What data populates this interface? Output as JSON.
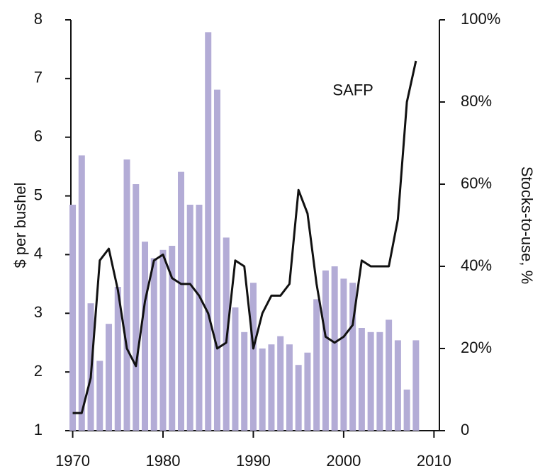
{
  "chart_data": {
    "type": "bar-line",
    "x_label": null,
    "y_label": "$ per bushel",
    "y2_label": "Stocks-to-use, %",
    "x": [
      1970,
      1971,
      1972,
      1973,
      1974,
      1975,
      1976,
      1977,
      1978,
      1979,
      1980,
      1981,
      1982,
      1983,
      1984,
      1985,
      1986,
      1987,
      1988,
      1989,
      1990,
      1991,
      1992,
      1993,
      1994,
      1995,
      1996,
      1997,
      1998,
      1999,
      2000,
      2001,
      2002,
      2003,
      2004,
      2005,
      2006,
      2007,
      2008
    ],
    "series": [
      {
        "type": "bar",
        "axis": "y2",
        "color": "#b3acd6",
        "values": [
          55,
          67,
          31,
          17,
          26,
          35,
          66,
          60,
          46,
          42,
          44,
          45,
          63,
          55,
          55,
          97,
          83,
          47,
          30,
          24,
          36,
          20,
          21,
          23,
          21,
          16,
          19,
          32,
          39,
          40,
          37,
          36,
          25,
          24,
          24,
          27,
          22,
          10,
          22
        ]
      },
      {
        "type": "line",
        "name": "SAFP",
        "color": "#111111",
        "values": [
          1.3,
          1.3,
          1.9,
          3.9,
          4.1,
          3.4,
          2.4,
          2.1,
          3.2,
          3.9,
          4.0,
          3.6,
          3.5,
          3.5,
          3.3,
          3.0,
          2.4,
          2.5,
          3.9,
          3.8,
          2.4,
          3.0,
          3.3,
          3.3,
          3.5,
          5.1,
          4.7,
          3.5,
          2.6,
          2.5,
          2.6,
          2.8,
          3.9,
          3.8,
          3.8,
          3.8,
          4.6,
          6.6,
          7.3
        ]
      }
    ],
    "xlim": [
      1969.8,
      2010.6
    ],
    "xticks": [
      1970,
      1980,
      1990,
      2000,
      2010
    ],
    "ylim": [
      1,
      8
    ],
    "yticks": [
      1,
      2,
      3,
      4,
      5,
      6,
      7,
      8
    ],
    "y2lim": [
      0,
      100
    ],
    "y2ticks": [
      0,
      {
        "value": 20,
        "label": "20%"
      },
      {
        "value": 40,
        "label": "40%"
      },
      {
        "value": 60,
        "label": "60%"
      },
      {
        "value": 80,
        "label": "80%"
      },
      {
        "value": 100,
        "label": "100%"
      }
    ]
  }
}
